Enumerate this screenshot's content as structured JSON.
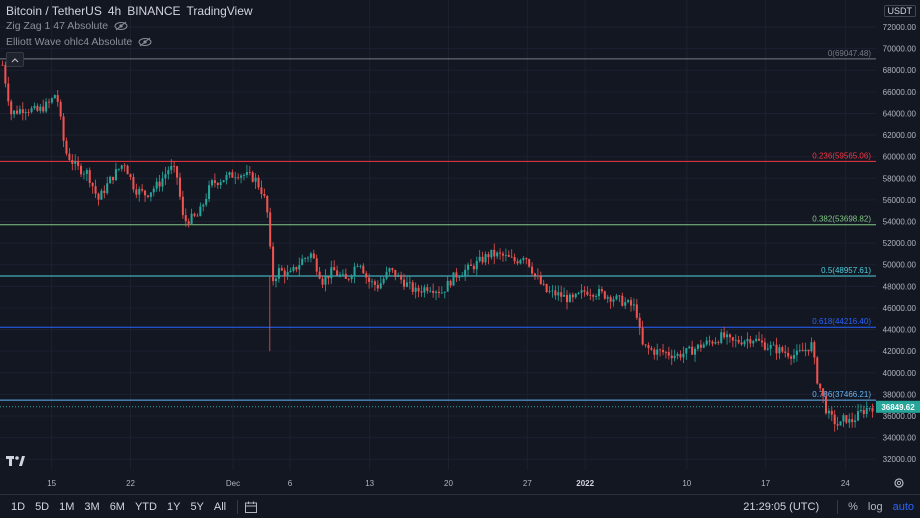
{
  "header": {
    "symbol": "Bitcoin / TetherUS",
    "interval": "4h",
    "exchange": "BINANCE",
    "platform": "TradingView"
  },
  "indicators": [
    {
      "label": "Zig Zag 1 47 Absolute"
    },
    {
      "label": "Elliott Wave ohlc4 Absolute"
    }
  ],
  "price_axis": {
    "currency": "USDT"
  },
  "bottom_bar": {
    "timeframes": [
      "1D",
      "5D",
      "1M",
      "3M",
      "6M",
      "YTD",
      "1Y",
      "5Y",
      "All"
    ],
    "time": "21:29:05 (UTC)",
    "percent_label": "%",
    "log_label": "log",
    "auto_label": "auto"
  },
  "colors": {
    "background": "#131722",
    "up": "#26a69a",
    "down": "#ef5350",
    "last_price": "#26a69a"
  },
  "chart_data": {
    "type": "candlestick",
    "title": "Bitcoin / TetherUS",
    "ylim": [
      31000,
      74500
    ],
    "yticks": [
      32000,
      34000,
      36000,
      38000,
      40000,
      42000,
      44000,
      46000,
      48000,
      50000,
      52000,
      54000,
      56000,
      58000,
      60000,
      62000,
      64000,
      66000,
      68000,
      70000,
      72000
    ],
    "xticks": [
      {
        "label": "15",
        "pos": 0.059,
        "bold": false
      },
      {
        "label": "22",
        "pos": 0.149,
        "bold": false
      },
      {
        "label": "Dec",
        "pos": 0.266,
        "bold": false
      },
      {
        "label": "6",
        "pos": 0.331,
        "bold": false
      },
      {
        "label": "13",
        "pos": 0.422,
        "bold": false
      },
      {
        "label": "20",
        "pos": 0.512,
        "bold": false
      },
      {
        "label": "27",
        "pos": 0.602,
        "bold": false
      },
      {
        "label": "2022",
        "pos": 0.668,
        "bold": true
      },
      {
        "label": "10",
        "pos": 0.784,
        "bold": false
      },
      {
        "label": "17",
        "pos": 0.874,
        "bold": false
      },
      {
        "label": "24",
        "pos": 0.965,
        "bold": false
      }
    ],
    "fib_levels": [
      {
        "ratio": "0",
        "value": 69047.48,
        "label": "0(69047.48)",
        "color": "#787b86"
      },
      {
        "ratio": "0.236",
        "value": 59565.06,
        "label": "0.236(59565.06)",
        "color": "#f23645"
      },
      {
        "ratio": "0.382",
        "value": 53698.82,
        "label": "0.382(53698.82)",
        "color": "#81c784"
      },
      {
        "ratio": "0.5",
        "value": 48957.61,
        "label": "0.5(48957.61)",
        "color": "#4dd0e1"
      },
      {
        "ratio": "0.618",
        "value": 44216.4,
        "label": "0.618(44216.40)",
        "color": "#2962ff"
      },
      {
        "ratio": "0.786",
        "value": 37466.21,
        "label": "0.786(37466.21)",
        "color": "#64b5f6"
      }
    ],
    "last_price": 36849.62,
    "last_price_label": "36849.62",
    "price_path": [
      [
        0.0,
        68500
      ],
      [
        0.01,
        64000
      ],
      [
        0.025,
        64500
      ],
      [
        0.04,
        64200
      ],
      [
        0.055,
        65000
      ],
      [
        0.062,
        66000
      ],
      [
        0.072,
        60500
      ],
      [
        0.085,
        59000
      ],
      [
        0.098,
        58500
      ],
      [
        0.11,
        56000
      ],
      [
        0.125,
        58000
      ],
      [
        0.14,
        59500
      ],
      [
        0.152,
        57000
      ],
      [
        0.165,
        56500
      ],
      [
        0.18,
        57500
      ],
      [
        0.192,
        59000
      ],
      [
        0.2,
        58500
      ],
      [
        0.208,
        54000
      ],
      [
        0.225,
        54500
      ],
      [
        0.24,
        57500
      ],
      [
        0.255,
        58000
      ],
      [
        0.27,
        58500
      ],
      [
        0.29,
        58000
      ],
      [
        0.3,
        56500
      ],
      [
        0.305,
        54500
      ],
      [
        0.31,
        48500
      ],
      [
        0.318,
        49500
      ],
      [
        0.33,
        49000
      ],
      [
        0.345,
        50500
      ],
      [
        0.355,
        51000
      ],
      [
        0.368,
        48500
      ],
      [
        0.38,
        49500
      ],
      [
        0.395,
        48500
      ],
      [
        0.41,
        50500
      ],
      [
        0.42,
        48500
      ],
      [
        0.432,
        48000
      ],
      [
        0.445,
        49500
      ],
      [
        0.46,
        48500
      ],
      [
        0.475,
        47500
      ],
      [
        0.49,
        48000
      ],
      [
        0.505,
        47500
      ],
      [
        0.52,
        49000
      ],
      [
        0.54,
        49800
      ],
      [
        0.56,
        51000
      ],
      [
        0.575,
        50800
      ],
      [
        0.59,
        50300
      ],
      [
        0.6,
        51000
      ],
      [
        0.612,
        49000
      ],
      [
        0.625,
        47500
      ],
      [
        0.64,
        47200
      ],
      [
        0.655,
        46700
      ],
      [
        0.67,
        47600
      ],
      [
        0.685,
        47400
      ],
      [
        0.7,
        47000
      ],
      [
        0.715,
        46500
      ],
      [
        0.728,
        46000
      ],
      [
        0.735,
        42500
      ],
      [
        0.748,
        42000
      ],
      [
        0.76,
        41900
      ],
      [
        0.775,
        41600
      ],
      [
        0.79,
        42000
      ],
      [
        0.805,
        42600
      ],
      [
        0.818,
        43000
      ],
      [
        0.828,
        43400
      ],
      [
        0.838,
        42800
      ],
      [
        0.85,
        43000
      ],
      [
        0.862,
        43200
      ],
      [
        0.875,
        42600
      ],
      [
        0.888,
        42200
      ],
      [
        0.9,
        41900
      ],
      [
        0.912,
        41600
      ],
      [
        0.922,
        42100
      ],
      [
        0.93,
        42600
      ],
      [
        0.936,
        39500
      ],
      [
        0.942,
        38000
      ],
      [
        0.948,
        36200
      ],
      [
        0.955,
        35600
      ],
      [
        0.962,
        35000
      ],
      [
        0.968,
        35900
      ],
      [
        0.974,
        35400
      ],
      [
        0.98,
        35800
      ],
      [
        0.986,
        36300
      ],
      [
        0.992,
        36600
      ],
      [
        0.996,
        36850
      ]
    ]
  }
}
